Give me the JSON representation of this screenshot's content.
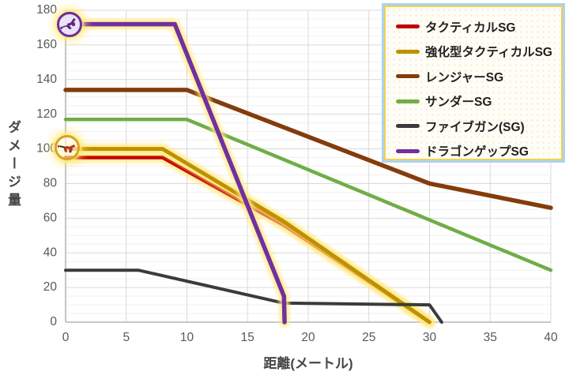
{
  "chart_data": {
    "type": "line",
    "title": "",
    "xlabel": "距離(メートル)",
    "ylabel": "ダメージ量",
    "xlim": [
      0,
      40
    ],
    "ylim": [
      0,
      180
    ],
    "x_ticks": [
      0,
      5,
      10,
      15,
      20,
      25,
      30,
      35,
      40
    ],
    "y_ticks": [
      0,
      20,
      40,
      60,
      80,
      100,
      120,
      140,
      160,
      180
    ],
    "grid": true,
    "minor_y_grid_step": 5,
    "legend_position": "top-right",
    "highlight_glow_color": "#FFEA80",
    "series": [
      {
        "name": "タクティカルSG",
        "color": "#C00000",
        "glow": true,
        "stroke_width": 4.5,
        "points": [
          [
            0,
            95
          ],
          [
            8,
            95
          ],
          [
            18,
            56
          ],
          [
            30,
            0
          ]
        ]
      },
      {
        "name": "強化型タクティカルSG",
        "color": "#BF9000",
        "glow": true,
        "stroke_width": 5,
        "points": [
          [
            0,
            100
          ],
          [
            8,
            100
          ],
          [
            18,
            58
          ],
          [
            30,
            0
          ]
        ]
      },
      {
        "name": "レンジャーSG",
        "color": "#843C0C",
        "glow": false,
        "stroke_width": 5.5,
        "points": [
          [
            0,
            134
          ],
          [
            10,
            134
          ],
          [
            30,
            80
          ],
          [
            40,
            66
          ]
        ]
      },
      {
        "name": "サンダーSG",
        "color": "#70AD47",
        "glow": false,
        "stroke_width": 4.5,
        "points": [
          [
            0,
            117
          ],
          [
            10,
            117
          ],
          [
            40,
            30
          ]
        ]
      },
      {
        "name": "ファイブガン(SG)",
        "color": "#3B3B3B",
        "glow": false,
        "stroke_width": 4,
        "points": [
          [
            0,
            30
          ],
          [
            6,
            30
          ],
          [
            18,
            11
          ],
          [
            30,
            10
          ],
          [
            31,
            0
          ]
        ]
      },
      {
        "name": "ドラゴンゲップSG",
        "color": "#7030A0",
        "glow": true,
        "stroke_width": 5.5,
        "points": [
          [
            0,
            172
          ],
          [
            9,
            172
          ],
          [
            18,
            15
          ],
          [
            18.05,
            0
          ]
        ]
      }
    ]
  },
  "icons": [
    {
      "name": "dragon-shotgun-icon",
      "marks_series": "ドラゴンゲップSG"
    },
    {
      "name": "tactical-shotgun-icon",
      "marks_series": "タクティカルSG"
    }
  ]
}
